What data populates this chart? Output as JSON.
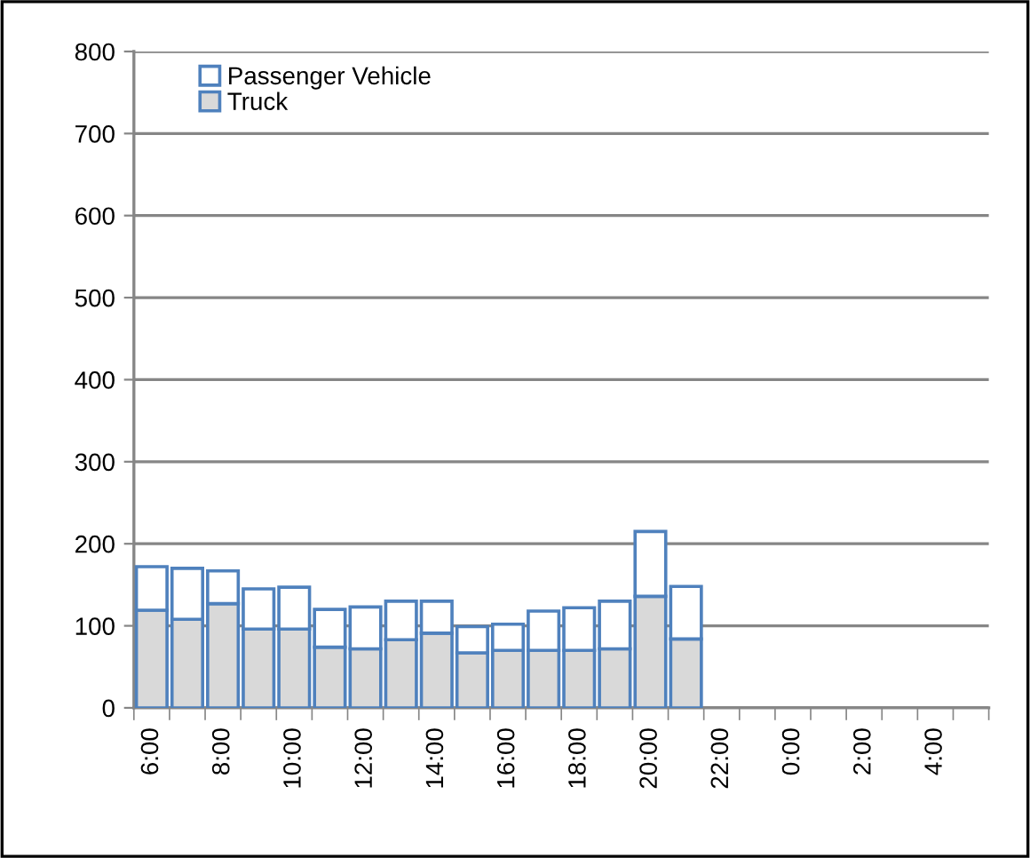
{
  "chart_data": {
    "type": "bar",
    "stacked": true,
    "categories": [
      "6:00",
      null,
      "8:00",
      null,
      "10:00",
      null,
      "12:00",
      null,
      "14:00",
      null,
      "16:00",
      null,
      "18:00",
      null,
      "20:00",
      null,
      "22:00",
      null,
      "0:00",
      null,
      "2:00",
      null,
      "4:00",
      null
    ],
    "series": [
      {
        "name": "Truck",
        "color": "#d9d9d9",
        "values": [
          119,
          108,
          127,
          96,
          96,
          74,
          72,
          83,
          91,
          67,
          70,
          70,
          70,
          72,
          136,
          84,
          null,
          null,
          null,
          null,
          null,
          null,
          null,
          null
        ]
      },
      {
        "name": "Passenger Vehicle",
        "color": "#ffffff",
        "values": [
          53,
          62,
          40,
          49,
          51,
          46,
          51,
          47,
          39,
          32,
          32,
          48,
          52,
          58,
          79,
          64,
          null,
          null,
          null,
          null,
          null,
          null,
          null,
          null
        ]
      }
    ],
    "ylim": [
      0,
      800
    ],
    "yticks": [
      0,
      100,
      200,
      300,
      400,
      500,
      600,
      700,
      800
    ],
    "grid": "y",
    "legend": "top left"
  }
}
